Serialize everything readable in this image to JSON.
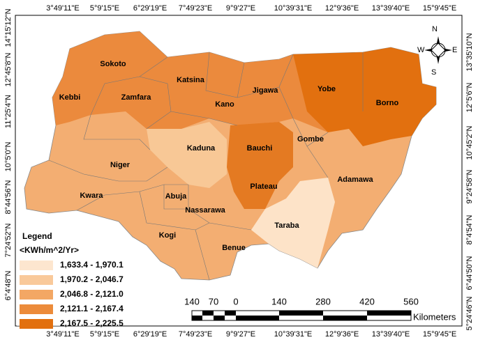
{
  "map": {
    "x_labels": [
      "3°49'11\"E",
      "5°9'15\"E",
      "6°29'19\"E",
      "7°49'23\"E",
      "9°9'27\"E",
      "10°39'31\"E",
      "12°9'36\"E",
      "13°39'40\"E",
      "15°9'45\"E"
    ],
    "y_labels_left": [
      "14°15'12\"N",
      "12°45'8\"N",
      "11°25'4\"N",
      "10°5'0\"N",
      "8°44'56\"N",
      "7°24'52\"N",
      "6°4'48\"N"
    ],
    "y_labels_right": [
      "13°35'10\"N",
      "12°5'6\"N",
      "10°45'2\"N",
      "9°24'58\"N",
      "8°4'54\"N",
      "6°44'50\"N",
      "5°24'46\"N"
    ],
    "states": [
      "Sokoto",
      "Kebbi",
      "Zamfara",
      "Katsina",
      "Jigawa",
      "Yobe",
      "Borno",
      "Kano",
      "Gombe",
      "Kaduna",
      "Bauchi",
      "Niger",
      "Plateau",
      "Adamawa",
      "Kwara",
      "Abuja",
      "Nassarawa",
      "Taraba",
      "Kogi",
      "Benue"
    ],
    "legend": {
      "title": "Legend",
      "unit": "<KWh/m^2/Yr>",
      "classes": [
        {
          "label": "1,633.4 - 1,970.1",
          "color": "#fde6cf"
        },
        {
          "label": "1,970.2 - 2,046.7",
          "color": "#f9c99a"
        },
        {
          "label": "2,046.8 - 2,121.0",
          "color": "#f3a764"
        },
        {
          "label": "2,121.1 - 2,167.4",
          "color": "#ec8b3a"
        },
        {
          "label": "2,167.5 - 2,225.5",
          "color": "#e2700f"
        }
      ]
    },
    "scale_bar": {
      "ticks": [
        "140",
        "70",
        "0",
        "140",
        "280",
        "420",
        "560"
      ],
      "unit": "Kilometers"
    },
    "compass": {
      "n": "N",
      "s": "S",
      "e": "E",
      "w": "W"
    }
  }
}
